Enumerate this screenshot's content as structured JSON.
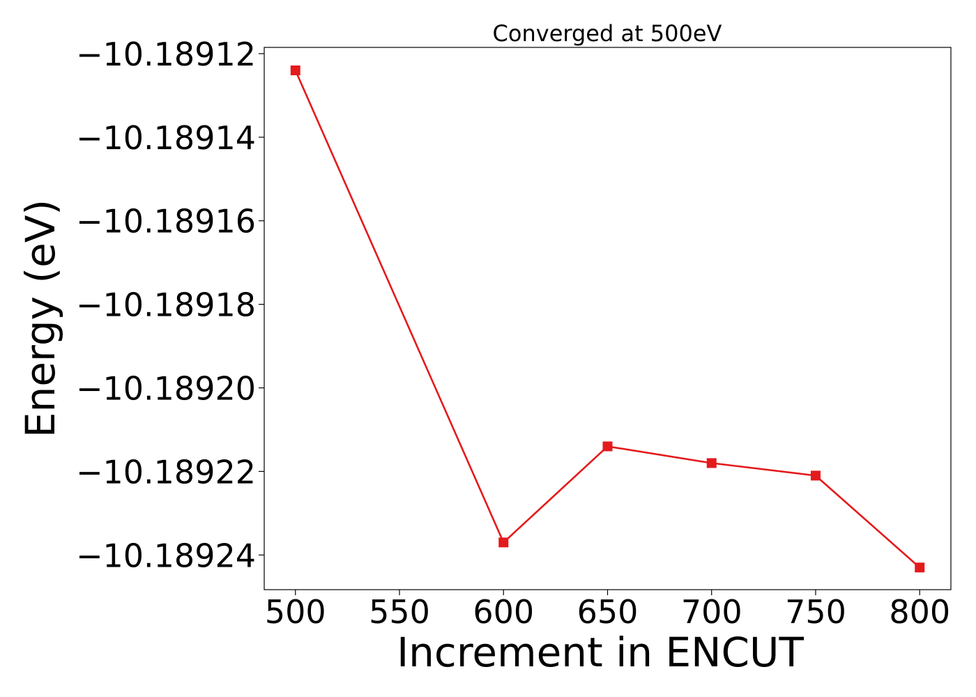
{
  "chart_data": {
    "type": "line",
    "title": "Converged at 500eV",
    "xlabel": "Increment in ENCUT",
    "ylabel": "Energy (eV)",
    "x": [
      500,
      600,
      650,
      700,
      750,
      800
    ],
    "series": [
      {
        "values": [
          -10.189124,
          -10.189237,
          -10.189214,
          -10.189218,
          -10.189221,
          -10.189243
        ],
        "color": "#e41a1c",
        "marker": "square"
      }
    ],
    "xlim": [
      485,
      815
    ],
    "ylim": [
      -10.1892483,
      -10.1891185
    ],
    "xticks": [
      500,
      550,
      600,
      650,
      700,
      750,
      800
    ],
    "xtick_labels": [
      "500",
      "550",
      "600",
      "650",
      "700",
      "750",
      "800"
    ],
    "yticks": [
      -10.18912,
      -10.18914,
      -10.18916,
      -10.18918,
      -10.1892,
      -10.18922,
      -10.18924
    ],
    "ytick_labels": [
      "−10.18912",
      "−10.18914",
      "−10.18916",
      "−10.18918",
      "−10.18920",
      "−10.18922",
      "−10.18924"
    ],
    "grid": false,
    "legend": false
  }
}
